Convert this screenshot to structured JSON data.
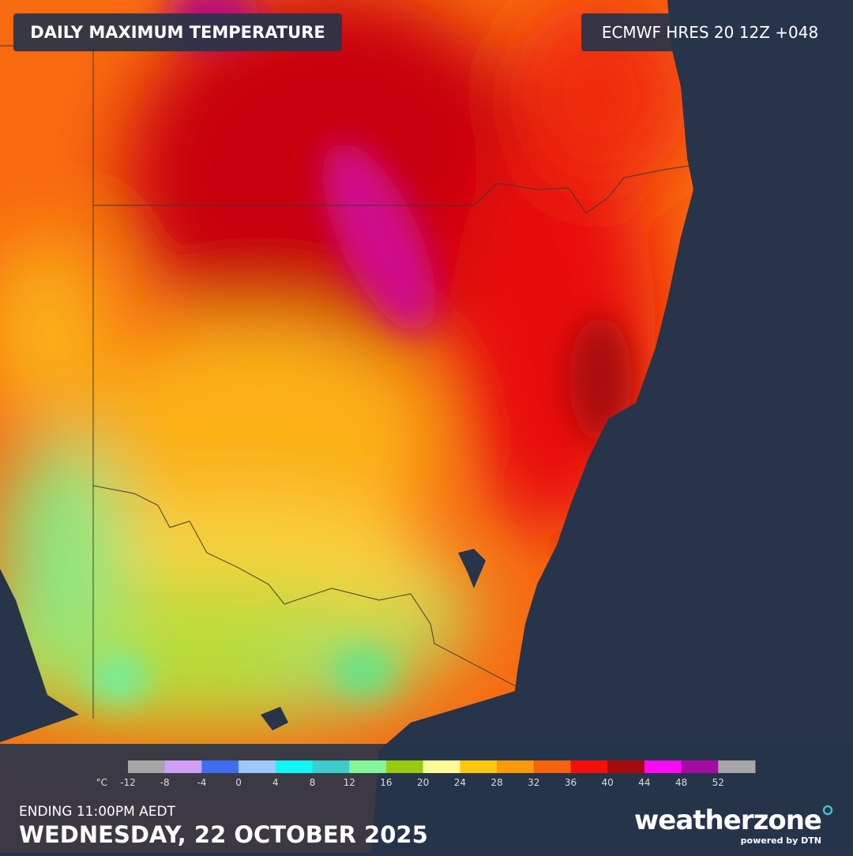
{
  "header": {
    "title": "DAILY MAXIMUM TEMPERATURE",
    "model": "ECMWF HRES 20 12Z +048"
  },
  "legend": {
    "unit": "°C",
    "ticks": [
      -12,
      -8,
      -4,
      0,
      4,
      8,
      12,
      16,
      20,
      24,
      28,
      32,
      36,
      40,
      44,
      48,
      52
    ],
    "colors": [
      "#a6a6a6",
      "#cf9ef5",
      "#3f6df0",
      "#9fc8fa",
      "#13f5f5",
      "#3ccccc",
      "#85f59a",
      "#99cc10",
      "#fafa96",
      "#fac80f",
      "#fa9a0a",
      "#f5640a",
      "#f50f0a",
      "#a50a0a",
      "#fa0af5",
      "#a50aa5",
      "#a6a6a6"
    ]
  },
  "footer": {
    "ending": "ENDING 11:00PM AEDT",
    "date": "WEDNESDAY, 22 OCTOBER 2025"
  },
  "logo": {
    "name": "weatherzone",
    "tagline": "powered by DTN"
  }
}
